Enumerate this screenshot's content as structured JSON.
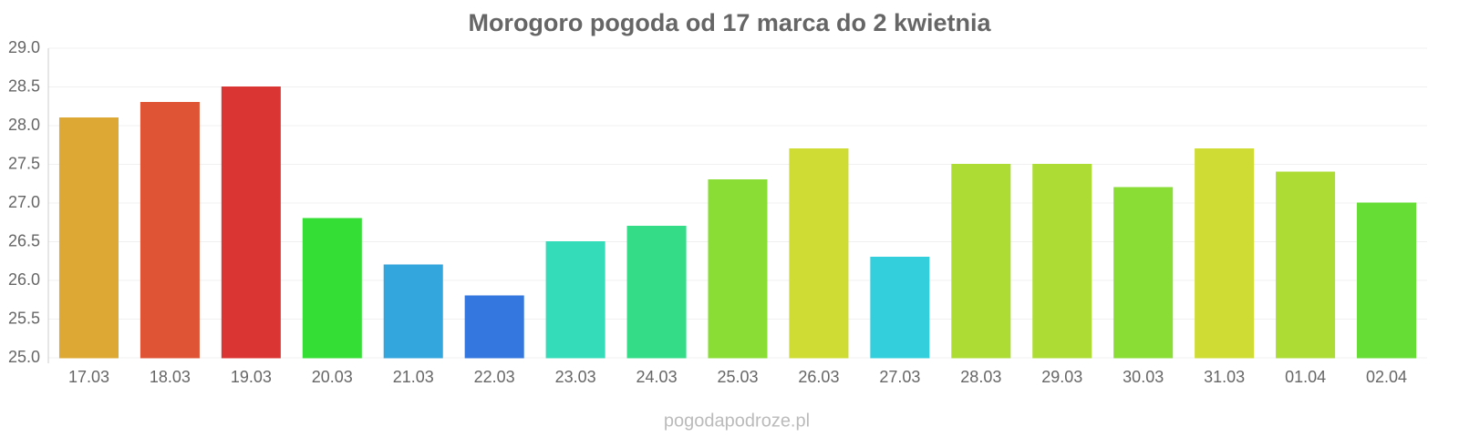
{
  "chart_data": {
    "type": "bar",
    "title": "Morogoro pogoda od 17 marca do 2 kwietnia",
    "categories": [
      "17.03",
      "18.03",
      "19.03",
      "20.03",
      "21.03",
      "22.03",
      "23.03",
      "24.03",
      "25.03",
      "26.03",
      "27.03",
      "28.03",
      "29.03",
      "30.03",
      "31.03",
      "01.04",
      "02.04"
    ],
    "values": [
      28.1,
      28.3,
      28.5,
      26.8,
      26.2,
      25.8,
      26.5,
      26.7,
      27.3,
      27.7,
      26.3,
      27.5,
      27.5,
      27.2,
      27.7,
      27.4,
      27.0
    ],
    "colors": [
      "#dda833",
      "#de5434",
      "#db3533",
      "#34de34",
      "#34a6de",
      "#3477de",
      "#34dcb9",
      "#34dc88",
      "#8add34",
      "#cedc34",
      "#34cfdc",
      "#addd34",
      "#addd34",
      "#8add34",
      "#cedc34",
      "#addd34",
      "#66dd34"
    ],
    "ylim": [
      25,
      29
    ],
    "yticks": [
      {
        "value": 25,
        "label": "25.0"
      },
      {
        "value": 25.5,
        "label": "25.5"
      },
      {
        "value": 26,
        "label": "26.0"
      },
      {
        "value": 26.5,
        "label": "26.5"
      },
      {
        "value": 27,
        "label": "27.0"
      },
      {
        "value": 27.5,
        "label": "27.5"
      },
      {
        "value": 28,
        "label": "28.0"
      },
      {
        "value": 28.5,
        "label": "28.5"
      },
      {
        "value": 29,
        "label": "29.0"
      }
    ],
    "grid": true,
    "footer": "pogodapodroze.pl"
  }
}
